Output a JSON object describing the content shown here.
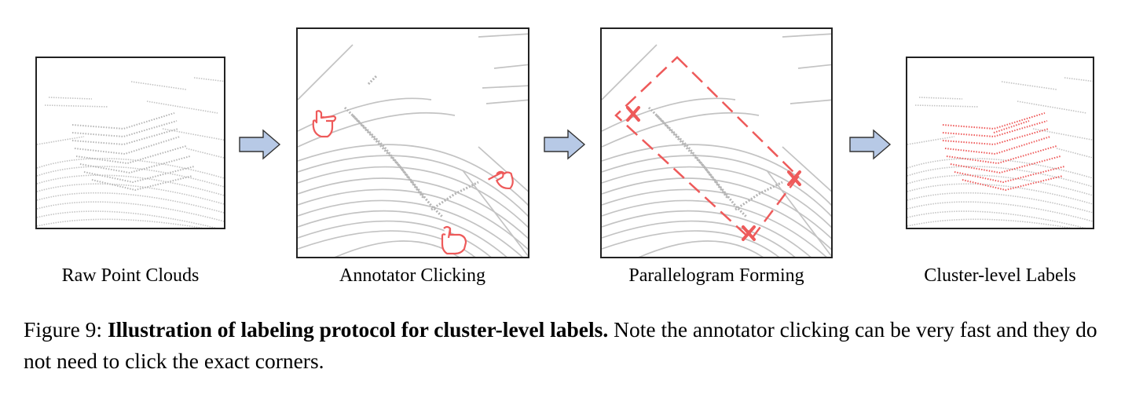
{
  "panels": [
    {
      "label": "Raw Point Clouds"
    },
    {
      "label": "Annotator Clicking"
    },
    {
      "label": "Parallelogram Forming"
    },
    {
      "label": "Cluster-level Labels"
    }
  ],
  "colors": {
    "points": "#c3c3c3",
    "annotation": "#ee5a5a",
    "arrow_fill": "#b7c9e6",
    "arrow_stroke": "#333333"
  },
  "icons": [
    "pointing-hand-icon",
    "cross-mark-icon",
    "right-arrow-icon"
  ],
  "caption": {
    "prefix": "Figure 9: ",
    "bold": "Illustration of labeling protocol for cluster-level labels.",
    "rest": " Note the annotator clicking can be very fast and they do not need to click the exact corners."
  }
}
